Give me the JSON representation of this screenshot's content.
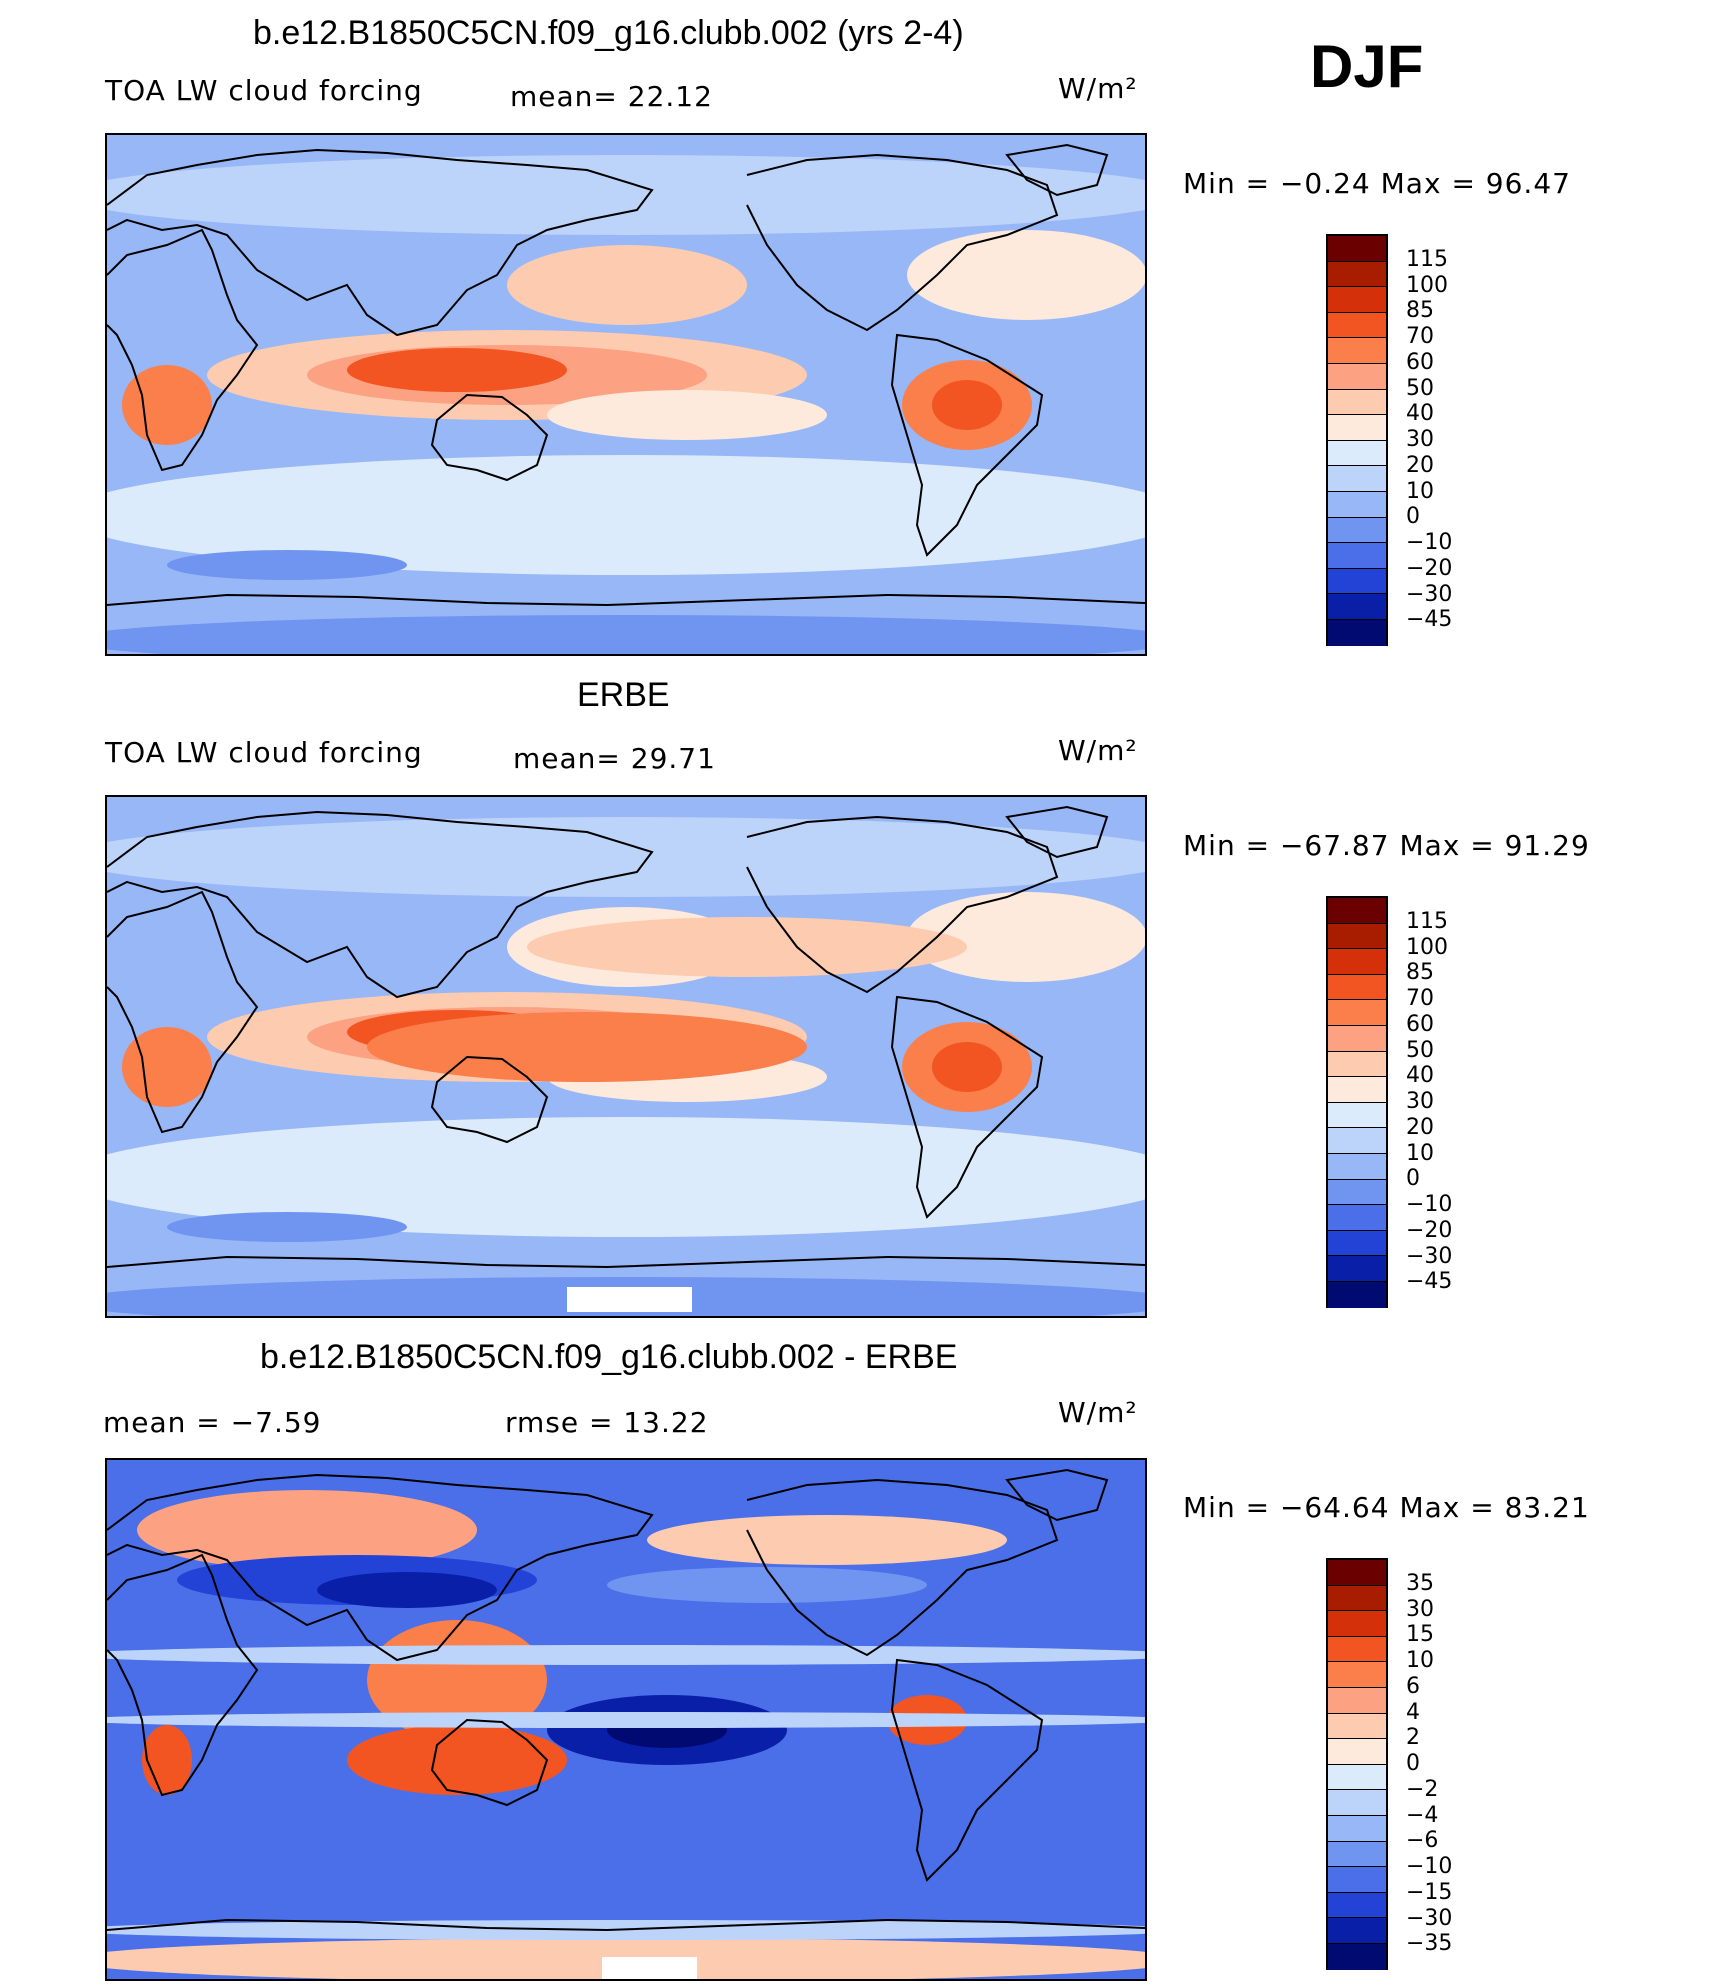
{
  "season": "DJF",
  "panels": [
    {
      "title": "b.e12.B1850C5CN.f09_g16.clubb.002 (yrs 2-4)",
      "variable": "TOA LW cloud forcing",
      "stat1": "mean=  22.12",
      "stat2": "",
      "units": "W/m²",
      "minmax": "Min =   −0.24 Max =   96.47",
      "colorbar_labels": [
        "115",
        "100",
        "85",
        "70",
        "60",
        "50",
        "40",
        "30",
        "20",
        "10",
        "0",
        "−10",
        "−20",
        "−30",
        "−45"
      ]
    },
    {
      "title": "ERBE",
      "variable": "TOA LW cloud forcing",
      "stat1": "mean=  29.71",
      "stat2": "",
      "units": "W/m²",
      "minmax": "Min = −67.87 Max =   91.29",
      "colorbar_labels": [
        "115",
        "100",
        "85",
        "70",
        "60",
        "50",
        "40",
        "30",
        "20",
        "10",
        "0",
        "−10",
        "−20",
        "−30",
        "−45"
      ]
    },
    {
      "title": "b.e12.B1850C5CN.f09_g16.clubb.002 - ERBE",
      "variable": "",
      "stat1": "mean =   −7.59",
      "stat2": "rmse =   13.22",
      "units": "W/m²",
      "minmax": "Min = −64.64 Max =   83.21",
      "colorbar_labels": [
        "35",
        "30",
        "15",
        "10",
        "6",
        "4",
        "2",
        "0",
        "−2",
        "−4",
        "−6",
        "−10",
        "−15",
        "−30",
        "−35"
      ]
    }
  ],
  "colors": {
    "scale": [
      "#6b0000",
      "#a81c00",
      "#d4300a",
      "#f25522",
      "#fb7f4a",
      "#fca283",
      "#fdcbb0",
      "#fdeadc",
      "#dcebfb",
      "#bcd3fa",
      "#98b7f6",
      "#6f95f0",
      "#4a6fe8",
      "#2343d6",
      "#0a1fa8",
      "#000a70"
    ],
    "coast": "#000000",
    "missing": "#ffffff"
  }
}
